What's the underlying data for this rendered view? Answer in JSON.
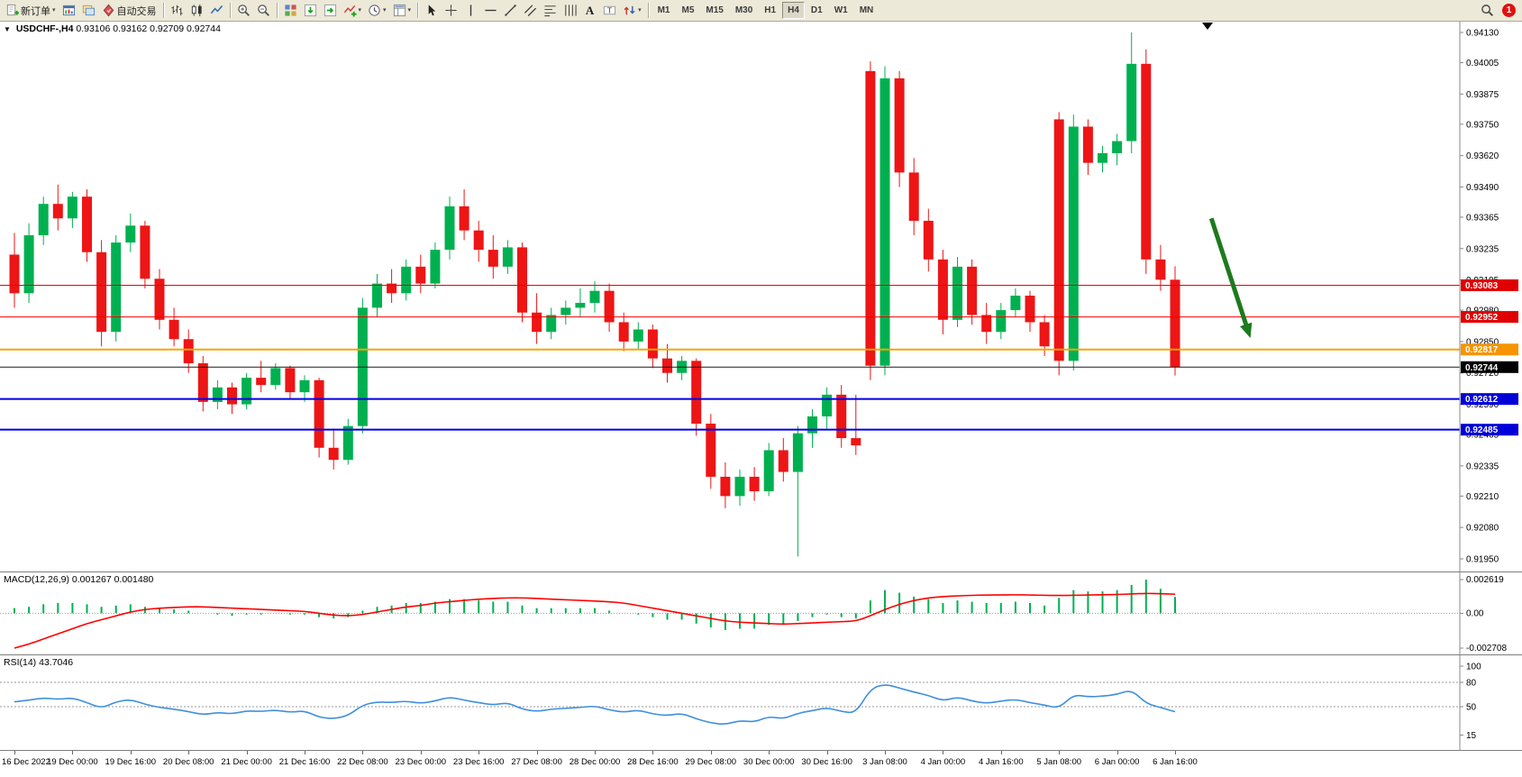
{
  "toolbar": {
    "groups": [
      {
        "items": [
          {
            "name": "new-order-button",
            "icon": "new-order-icon",
            "label": "新订单",
            "dropdown": true
          },
          {
            "name": "chart-window-button",
            "icon": "chart-window-icon"
          },
          {
            "name": "profiles-button",
            "icon": "profiles-icon"
          },
          {
            "name": "autotrading-button",
            "icon": "autotrading-icon",
            "label": "自动交易"
          }
        ]
      },
      {
        "items": [
          {
            "name": "bars-chart-button",
            "icon": "bars-chart-icon"
          },
          {
            "name": "candles-chart-button",
            "icon": "candles-chart-icon"
          },
          {
            "name": "line-chart-button",
            "icon": "line-chart-icon"
          }
        ]
      },
      {
        "items": [
          {
            "name": "zoom-in-button",
            "icon": "zoom-in-icon"
          },
          {
            "name": "zoom-out-button",
            "icon": "zoom-out-icon"
          }
        ]
      },
      {
        "items": [
          {
            "name": "tile-windows-button",
            "icon": "tile-windows-icon"
          },
          {
            "name": "auto-scroll-button",
            "icon": "auto-scroll-icon"
          },
          {
            "name": "chart-shift-button",
            "icon": "chart-shift-icon"
          },
          {
            "name": "indicators-button",
            "icon": "indicators-icon",
            "dropdown": true
          },
          {
            "name": "periods-button",
            "icon": "periods-icon",
            "dropdown": true
          },
          {
            "name": "templates-button",
            "icon": "templates-icon",
            "dropdown": true
          }
        ]
      },
      {
        "items": [
          {
            "name": "cursor-button",
            "icon": "cursor-icon"
          },
          {
            "name": "crosshair-button",
            "icon": "crosshair-icon"
          },
          {
            "name": "vertical-line-button",
            "icon": "vertical-line-icon"
          },
          {
            "name": "horizontal-line-button",
            "icon": "horizontal-line-icon"
          },
          {
            "name": "trendline-button",
            "icon": "trendline-icon"
          },
          {
            "name": "channel-button",
            "icon": "channel-icon"
          },
          {
            "name": "fibonacci-button",
            "icon": "fibonacci-icon"
          },
          {
            "name": "cycle-lines-button",
            "icon": "cycle-lines-icon"
          },
          {
            "name": "text-button",
            "icon": "text-icon"
          },
          {
            "name": "text-label-button",
            "icon": "text-label-icon"
          },
          {
            "name": "arrows-button",
            "icon": "arrows-icon",
            "dropdown": true
          }
        ]
      }
    ],
    "timeframes": {
      "items": [
        "M1",
        "M5",
        "M15",
        "M30",
        "H1",
        "H4",
        "D1",
        "W1",
        "MN"
      ],
      "active": "H4"
    },
    "badge_count": "1"
  },
  "chart_data": [
    {
      "type": "candlestick",
      "symbol": "USDCHF",
      "timeframe": "H4",
      "symbol_label": "USDCHF-,H4",
      "ohlc_label": "0.93106 0.93162 0.92709 0.92744",
      "current_price": 0.92744,
      "ylim": [
        0.9195,
        0.9413
      ],
      "y_ticks": [
        "0.94130",
        "0.94005",
        "0.93875",
        "0.93750",
        "0.93620",
        "0.93490",
        "0.93365",
        "0.93235",
        "0.93105",
        "0.92980",
        "0.92850",
        "0.92720",
        "0.92590",
        "0.92465",
        "0.92335",
        "0.92210",
        "0.92080",
        "0.91950"
      ],
      "label_every": 4,
      "x_labels": [
        "16 Dec 2022",
        "19 Dec 00:00",
        "19 Dec 16:00",
        "20 Dec 08:00",
        "21 Dec 00:00",
        "21 Dec 16:00",
        "22 Dec 08:00",
        "23 Dec 00:00",
        "23 Dec 16:00",
        "27 Dec 08:00",
        "28 Dec 00:00",
        "28 Dec 16:00",
        "29 Dec 08:00",
        "30 Dec 00:00",
        "30 Dec 16:00",
        "3 Jan 08:00",
        "4 Jan 00:00",
        "4 Jan 16:00",
        "5 Jan 08:00",
        "6 Jan 00:00",
        "6 Jan 16:00"
      ],
      "colors": {
        "up": "#00b050",
        "down": "#ed1515"
      },
      "candles": [
        [
          0.9321,
          0.933,
          0.9299,
          0.9305
        ],
        [
          0.9305,
          0.9334,
          0.9301,
          0.9329
        ],
        [
          0.9329,
          0.9345,
          0.9325,
          0.9342
        ],
        [
          0.9342,
          0.935,
          0.9331,
          0.9336
        ],
        [
          0.9336,
          0.9347,
          0.9332,
          0.9345
        ],
        [
          0.9345,
          0.9348,
          0.9318,
          0.9322
        ],
        [
          0.9322,
          0.9327,
          0.9283,
          0.9289
        ],
        [
          0.9289,
          0.9329,
          0.9285,
          0.9326
        ],
        [
          0.9326,
          0.9338,
          0.9322,
          0.9333
        ],
        [
          0.9333,
          0.9335,
          0.9307,
          0.9311
        ],
        [
          0.9311,
          0.9315,
          0.929,
          0.9294
        ],
        [
          0.9294,
          0.9299,
          0.9283,
          0.9286
        ],
        [
          0.9286,
          0.929,
          0.9272,
          0.9276
        ],
        [
          0.9276,
          0.9279,
          0.9256,
          0.926
        ],
        [
          0.926,
          0.9269,
          0.9257,
          0.9266
        ],
        [
          0.9266,
          0.9268,
          0.9255,
          0.9259
        ],
        [
          0.9259,
          0.9272,
          0.9257,
          0.927
        ],
        [
          0.927,
          0.9277,
          0.9264,
          0.9267
        ],
        [
          0.9267,
          0.9276,
          0.9265,
          0.9274
        ],
        [
          0.9274,
          0.9275,
          0.9261,
          0.9264
        ],
        [
          0.9264,
          0.9271,
          0.926,
          0.9269
        ],
        [
          0.9269,
          0.927,
          0.9237,
          0.9241
        ],
        [
          0.9241,
          0.9249,
          0.9232,
          0.9236
        ],
        [
          0.9236,
          0.9253,
          0.9234,
          0.925
        ],
        [
          0.925,
          0.9303,
          0.9247,
          0.9299
        ],
        [
          0.9299,
          0.9313,
          0.9295,
          0.9309
        ],
        [
          0.9309,
          0.9315,
          0.9301,
          0.9305
        ],
        [
          0.9305,
          0.9319,
          0.9302,
          0.9316
        ],
        [
          0.9316,
          0.9321,
          0.9305,
          0.9309
        ],
        [
          0.9309,
          0.9326,
          0.9307,
          0.9323
        ],
        [
          0.9323,
          0.9345,
          0.9319,
          0.9341
        ],
        [
          0.9341,
          0.9348,
          0.9327,
          0.9331
        ],
        [
          0.9331,
          0.9335,
          0.9318,
          0.9323
        ],
        [
          0.9323,
          0.9329,
          0.9311,
          0.9316
        ],
        [
          0.9316,
          0.9327,
          0.9313,
          0.9324
        ],
        [
          0.9324,
          0.9326,
          0.9293,
          0.9297
        ],
        [
          0.9297,
          0.9305,
          0.9284,
          0.9289
        ],
        [
          0.9289,
          0.9299,
          0.9286,
          0.9296
        ],
        [
          0.9296,
          0.9302,
          0.9292,
          0.9299
        ],
        [
          0.9299,
          0.9307,
          0.9295,
          0.9301
        ],
        [
          0.9301,
          0.931,
          0.9297,
          0.9306
        ],
        [
          0.9306,
          0.9309,
          0.9289,
          0.9293
        ],
        [
          0.9293,
          0.9297,
          0.9281,
          0.9285
        ],
        [
          0.9285,
          0.9293,
          0.9282,
          0.929
        ],
        [
          0.929,
          0.9292,
          0.9274,
          0.9278
        ],
        [
          0.9278,
          0.9284,
          0.9268,
          0.9272
        ],
        [
          0.9272,
          0.9279,
          0.9269,
          0.9277
        ],
        [
          0.9277,
          0.9278,
          0.9246,
          0.9251
        ],
        [
          0.9251,
          0.9255,
          0.9224,
          0.9229
        ],
        [
          0.9229,
          0.9235,
          0.9216,
          0.9221
        ],
        [
          0.9221,
          0.9232,
          0.9217,
          0.9229
        ],
        [
          0.9229,
          0.9233,
          0.9219,
          0.9223
        ],
        [
          0.9223,
          0.9243,
          0.9221,
          0.924
        ],
        [
          0.924,
          0.9245,
          0.9227,
          0.9231
        ],
        [
          0.9231,
          0.925,
          0.9196,
          0.9247
        ],
        [
          0.9247,
          0.9257,
          0.9241,
          0.9254
        ],
        [
          0.9254,
          0.9266,
          0.9249,
          0.9263
        ],
        [
          0.9263,
          0.9267,
          0.9241,
          0.9245
        ],
        [
          0.9245,
          0.9263,
          0.9238,
          0.9242
        ],
        [
          0.9397,
          0.9401,
          0.9269,
          0.9275
        ],
        [
          0.9275,
          0.9399,
          0.9271,
          0.9394
        ],
        [
          0.9394,
          0.9397,
          0.9349,
          0.9355
        ],
        [
          0.9355,
          0.9361,
          0.9329,
          0.9335
        ],
        [
          0.9335,
          0.934,
          0.9314,
          0.9319
        ],
        [
          0.9319,
          0.9323,
          0.9288,
          0.9294
        ],
        [
          0.9294,
          0.932,
          0.9291,
          0.9316
        ],
        [
          0.9316,
          0.9319,
          0.9292,
          0.9296
        ],
        [
          0.9296,
          0.9301,
          0.9284,
          0.9289
        ],
        [
          0.9289,
          0.9301,
          0.9286,
          0.9298
        ],
        [
          0.9298,
          0.9307,
          0.9295,
          0.9304
        ],
        [
          0.9304,
          0.9306,
          0.9289,
          0.9293
        ],
        [
          0.9293,
          0.9296,
          0.9279,
          0.9283
        ],
        [
          0.9377,
          0.938,
          0.9271,
          0.9277
        ],
        [
          0.9277,
          0.9379,
          0.9273,
          0.9374
        ],
        [
          0.9374,
          0.9377,
          0.9354,
          0.9359
        ],
        [
          0.9359,
          0.9366,
          0.9355,
          0.9363
        ],
        [
          0.9363,
          0.9371,
          0.9358,
          0.9368
        ],
        [
          0.9368,
          0.9413,
          0.9363,
          0.94
        ],
        [
          0.94,
          0.9406,
          0.9313,
          0.9319
        ],
        [
          0.9319,
          0.9325,
          0.9306,
          0.93106
        ],
        [
          0.93106,
          0.93162,
          0.92709,
          0.92744
        ]
      ],
      "hlines": [
        {
          "price": 0.93083,
          "color": "#f00000",
          "width": 1,
          "tag": "0.93083",
          "tag_bg": "#e00000"
        },
        {
          "price": 0.92952,
          "color": "#f00000",
          "width": 1,
          "tag": "0.92952",
          "tag_bg": "#e00000"
        },
        {
          "price": 0.92817,
          "color": "#f7a400",
          "width": 2,
          "tag": "0.92817",
          "tag_bg": "#f79400"
        },
        {
          "price": 0.92744,
          "color": "#1a1a1a",
          "width": 1,
          "tag": "0.92744",
          "tag_bg": "#000000"
        },
        {
          "price": 0.92612,
          "color": "#0000e8",
          "width": 2,
          "tag": "0.92612",
          "tag_bg": "#0000d8"
        },
        {
          "price": 0.92485,
          "color": "#0000e8",
          "width": 2,
          "tag": "0.92485",
          "tag_bg": "#0000d8"
        }
      ],
      "arrow": {
        "from_bar": 83.5,
        "from_price": 0.9336,
        "to_bar": 86,
        "to_price": 0.929,
        "color": "#1e7a1e"
      }
    },
    {
      "type": "bar",
      "name": "MACD",
      "title_label": "MACD(12,26,9)",
      "values_label": "0.001267 0.001480",
      "ylim": [
        -0.002708,
        0.002619
      ],
      "y_ticks": [
        "0.002619",
        "0.00",
        "-0.002708"
      ],
      "color_hist": "#00b050",
      "color_signal": "#ff0000",
      "histogram": [
        0.0004,
        0.0005,
        0.0007,
        0.0008,
        0.0008,
        0.0007,
        0.0005,
        0.0006,
        0.0007,
        0.0005,
        0.0004,
        0.0003,
        0.0002,
        0.0,
        -0.0001,
        -0.0002,
        -0.0001,
        -0.0001,
        0.0,
        -0.0001,
        -0.0001,
        -0.0003,
        -0.0004,
        -0.0003,
        0.0002,
        0.0005,
        0.0006,
        0.0008,
        0.0008,
        0.0009,
        0.0011,
        0.0011,
        0.001,
        0.0009,
        0.0009,
        0.0006,
        0.0004,
        0.0004,
        0.0004,
        0.0004,
        0.0004,
        0.0002,
        0.0,
        -0.0001,
        -0.0003,
        -0.0005,
        -0.0005,
        -0.0008,
        -0.0011,
        -0.0013,
        -0.0012,
        -0.0012,
        -0.0009,
        -0.0009,
        -0.0006,
        -0.0003,
        -0.0001,
        -0.0003,
        -0.0004,
        0.001,
        0.0018,
        0.0016,
        0.0013,
        0.0011,
        0.0008,
        0.001,
        0.0009,
        0.0008,
        0.0008,
        0.0009,
        0.0008,
        0.0006,
        0.0012,
        0.0018,
        0.0017,
        0.0017,
        0.0018,
        0.0022,
        0.002619,
        0.0019,
        0.001267
      ],
      "signal": [
        -0.00271,
        -0.0024,
        -0.002,
        -0.0016,
        -0.0012,
        -0.0008,
        -0.0005,
        -0.0002,
        0.0001,
        0.0003,
        0.0004,
        0.00045,
        0.0005,
        0.0005,
        0.00045,
        0.0004,
        0.00035,
        0.0003,
        0.00025,
        0.0002,
        0.00015,
        0.0,
        -0.00015,
        -0.0002,
        -0.0001,
        0.0001,
        0.0003,
        0.0005,
        0.0006,
        0.0008,
        0.0009,
        0.001,
        0.0011,
        0.00115,
        0.0012,
        0.0012,
        0.00115,
        0.0011,
        0.00105,
        0.001,
        0.00095,
        0.0009,
        0.0008,
        0.0006,
        0.0004,
        0.0002,
        0.0,
        -0.0002,
        -0.0004,
        -0.0006,
        -0.0007,
        -0.00075,
        -0.0008,
        -0.00085,
        -0.0008,
        -0.00075,
        -0.0007,
        -0.00065,
        -0.0006,
        -0.0002,
        0.0003,
        0.0007,
        0.001,
        0.0012,
        0.0013,
        0.00135,
        0.0014,
        0.00142,
        0.00143,
        0.00144,
        0.00142,
        0.0014,
        0.00138,
        0.0014,
        0.00142,
        0.00144,
        0.00146,
        0.0015,
        0.00155,
        0.00152,
        0.00148
      ]
    },
    {
      "type": "line",
      "name": "RSI",
      "title_label": "RSI(14)",
      "value_label": "43.7046",
      "ylim": [
        0,
        100
      ],
      "levels": [
        80,
        50
      ],
      "y_ticks": [
        "100",
        "80",
        "50",
        "15"
      ],
      "color": "#3f8fde",
      "values": [
        56,
        58,
        61,
        59,
        61,
        55,
        48,
        56,
        59,
        53,
        49,
        47,
        44,
        40,
        43,
        41,
        45,
        44,
        46,
        43,
        45,
        37,
        35,
        39,
        52,
        56,
        55,
        57,
        54,
        57,
        62,
        58,
        55,
        52,
        55,
        47,
        44,
        47,
        48,
        49,
        51,
        46,
        43,
        46,
        41,
        39,
        42,
        35,
        30,
        28,
        33,
        31,
        38,
        35,
        42,
        45,
        49,
        44,
        42,
        72,
        78,
        73,
        68,
        64,
        57,
        62,
        57,
        54,
        57,
        59,
        55,
        52,
        48,
        65,
        62,
        63,
        65,
        71,
        54,
        49,
        43.7
      ]
    }
  ]
}
